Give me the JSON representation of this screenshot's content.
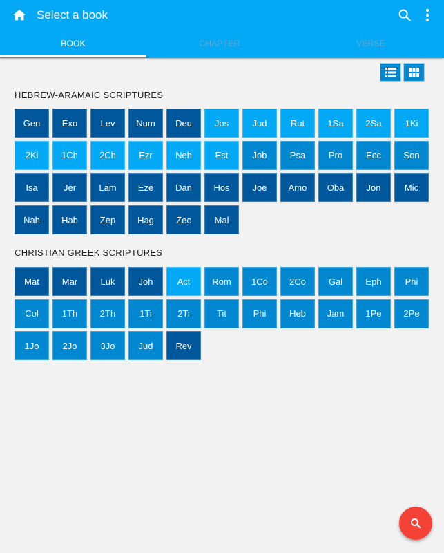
{
  "header": {
    "title": "Select a book",
    "icons": [
      "home-icon",
      "search-icon",
      "more-vert-icon"
    ]
  },
  "tabs": [
    {
      "label": "BOOK",
      "active": true
    },
    {
      "label": "CHAPTER",
      "active": false
    },
    {
      "label": "VERSE",
      "active": false
    }
  ],
  "view_toggle": [
    "list-view-icon",
    "grid-view-icon"
  ],
  "colors": {
    "appbar": "#03a9f4",
    "dark": "#01579b",
    "light": "#03a9f4",
    "medium": "#0288d1",
    "fab": "#f44336"
  },
  "sections": [
    {
      "title": "HEBREW-ARAMAIC SCRIPTURES",
      "books": [
        {
          "abbr": "Gen",
          "shade": "d"
        },
        {
          "abbr": "Exo",
          "shade": "d"
        },
        {
          "abbr": "Lev",
          "shade": "d"
        },
        {
          "abbr": "Num",
          "shade": "d"
        },
        {
          "abbr": "Deu",
          "shade": "d"
        },
        {
          "abbr": "Jos",
          "shade": "l"
        },
        {
          "abbr": "Jud",
          "shade": "l"
        },
        {
          "abbr": "Rut",
          "shade": "l"
        },
        {
          "abbr": "1Sa",
          "shade": "l"
        },
        {
          "abbr": "2Sa",
          "shade": "l"
        },
        {
          "abbr": "1Ki",
          "shade": "l"
        },
        {
          "abbr": "2Ki",
          "shade": "l"
        },
        {
          "abbr": "1Ch",
          "shade": "l"
        },
        {
          "abbr": "2Ch",
          "shade": "l"
        },
        {
          "abbr": "Ezr",
          "shade": "l"
        },
        {
          "abbr": "Neh",
          "shade": "l"
        },
        {
          "abbr": "Est",
          "shade": "l"
        },
        {
          "abbr": "Job",
          "shade": "m"
        },
        {
          "abbr": "Psa",
          "shade": "m"
        },
        {
          "abbr": "Pro",
          "shade": "m"
        },
        {
          "abbr": "Ecc",
          "shade": "m"
        },
        {
          "abbr": "Son",
          "shade": "m"
        },
        {
          "abbr": "Isa",
          "shade": "d"
        },
        {
          "abbr": "Jer",
          "shade": "d"
        },
        {
          "abbr": "Lam",
          "shade": "d"
        },
        {
          "abbr": "Eze",
          "shade": "d"
        },
        {
          "abbr": "Dan",
          "shade": "d"
        },
        {
          "abbr": "Hos",
          "shade": "d"
        },
        {
          "abbr": "Joe",
          "shade": "d"
        },
        {
          "abbr": "Amo",
          "shade": "d"
        },
        {
          "abbr": "Oba",
          "shade": "d"
        },
        {
          "abbr": "Jon",
          "shade": "d"
        },
        {
          "abbr": "Mic",
          "shade": "d"
        },
        {
          "abbr": "Nah",
          "shade": "d"
        },
        {
          "abbr": "Hab",
          "shade": "d"
        },
        {
          "abbr": "Zep",
          "shade": "d"
        },
        {
          "abbr": "Hag",
          "shade": "d"
        },
        {
          "abbr": "Zec",
          "shade": "d"
        },
        {
          "abbr": "Mal",
          "shade": "d"
        }
      ]
    },
    {
      "title": "CHRISTIAN GREEK SCRIPTURES",
      "books": [
        {
          "abbr": "Mat",
          "shade": "d"
        },
        {
          "abbr": "Mar",
          "shade": "d"
        },
        {
          "abbr": "Luk",
          "shade": "d"
        },
        {
          "abbr": "Joh",
          "shade": "d"
        },
        {
          "abbr": "Act",
          "shade": "l"
        },
        {
          "abbr": "Rom",
          "shade": "m"
        },
        {
          "abbr": "1Co",
          "shade": "m"
        },
        {
          "abbr": "2Co",
          "shade": "m"
        },
        {
          "abbr": "Gal",
          "shade": "m"
        },
        {
          "abbr": "Eph",
          "shade": "m"
        },
        {
          "abbr": "Phi",
          "shade": "m"
        },
        {
          "abbr": "Col",
          "shade": "m"
        },
        {
          "abbr": "1Th",
          "shade": "m"
        },
        {
          "abbr": "2Th",
          "shade": "m"
        },
        {
          "abbr": "1Ti",
          "shade": "m"
        },
        {
          "abbr": "2Ti",
          "shade": "m"
        },
        {
          "abbr": "Tit",
          "shade": "m"
        },
        {
          "abbr": "Phi",
          "shade": "m"
        },
        {
          "abbr": "Heb",
          "shade": "m"
        },
        {
          "abbr": "Jam",
          "shade": "m"
        },
        {
          "abbr": "1Pe",
          "shade": "m"
        },
        {
          "abbr": "2Pe",
          "shade": "m"
        },
        {
          "abbr": "1Jo",
          "shade": "m"
        },
        {
          "abbr": "2Jo",
          "shade": "m"
        },
        {
          "abbr": "3Jo",
          "shade": "m"
        },
        {
          "abbr": "Jud",
          "shade": "m"
        },
        {
          "abbr": "Rev",
          "shade": "d"
        }
      ]
    }
  ],
  "fab": {
    "icon": "search-icon"
  }
}
